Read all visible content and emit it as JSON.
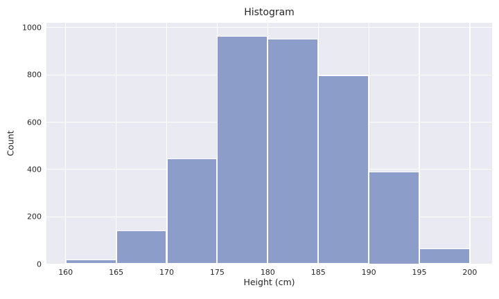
{
  "chart_data": {
    "type": "bar",
    "subtype": "histogram",
    "title": "Histogram",
    "xlabel": "Height (cm)",
    "ylabel": "Count",
    "bin_edges": [
      160,
      165,
      170,
      175,
      180,
      185,
      190,
      195,
      200
    ],
    "counts": [
      18,
      143,
      447,
      963,
      953,
      797,
      390,
      66
    ],
    "x_ticks": [
      160,
      165,
      170,
      175,
      180,
      185,
      190,
      195,
      200
    ],
    "y_ticks": [
      0,
      200,
      400,
      600,
      800,
      1000
    ],
    "xlim": [
      158.1,
      202.2
    ],
    "ylim": [
      0,
      1020
    ],
    "grid": true,
    "legend": false,
    "colors": {
      "bar_fill": "#8c9dc9",
      "bar_edge": "#ffffff",
      "plot_bg": "#eaeaf2",
      "gridline": "#ffffff",
      "text": "#262626",
      "figure_bg": "#ffffff"
    }
  }
}
